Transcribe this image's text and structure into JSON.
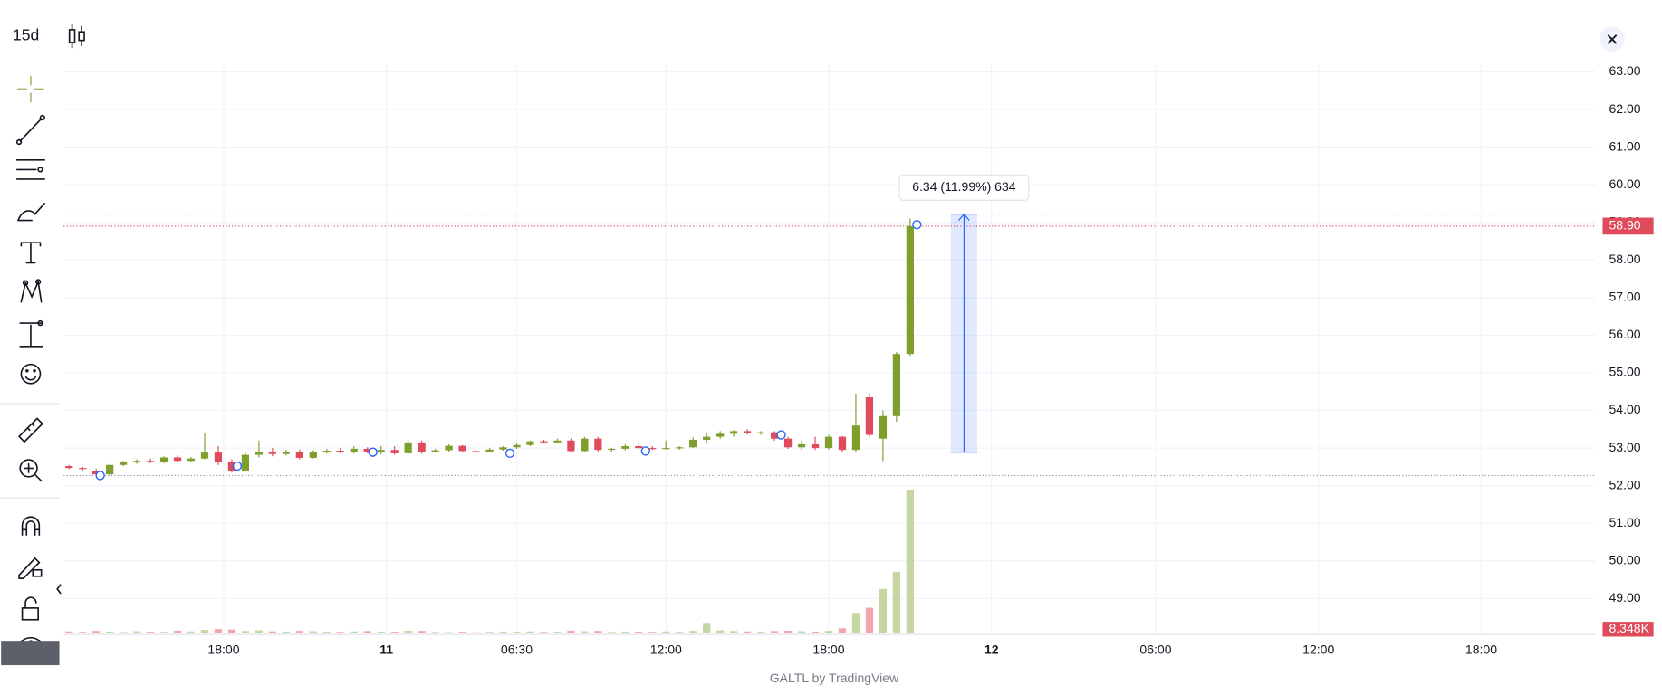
{
  "header": {
    "interval": "15d"
  },
  "footer": {
    "credit": "GALTL by TradingView"
  },
  "chart_data": {
    "type": "candlestick",
    "up_color": "#7f9f2c",
    "down_color": "#e04b5b",
    "volume_up_color": "#c6d6a2",
    "volume_down_color": "#f3a6ae",
    "xlim": [
      -0.4,
      112.5
    ],
    "ylim": [
      48.07,
      63.22
    ],
    "vlim": [
      0,
      8348
    ],
    "grid": true,
    "xticks": [
      {
        "value": 11.4,
        "label": "18:00"
      },
      {
        "value": 23.4,
        "label": "11"
      },
      {
        "value": 33,
        "label": "06:30"
      },
      {
        "value": 44,
        "label": "12:00"
      },
      {
        "value": 56,
        "label": "18:00"
      },
      {
        "value": 68,
        "label": "12"
      },
      {
        "value": 80.1,
        "label": "06:00"
      },
      {
        "value": 92.1,
        "label": "12:00"
      },
      {
        "value": 104.1,
        "label": "18:00"
      }
    ],
    "yticks": [
      {
        "value": 49,
        "label": "49.00"
      },
      {
        "value": 50,
        "label": "50.00"
      },
      {
        "value": 51,
        "label": "51.00"
      },
      {
        "value": 52,
        "label": "52.00"
      },
      {
        "value": 53,
        "label": "53.00"
      },
      {
        "value": 54,
        "label": "54.00"
      },
      {
        "value": 55,
        "label": "55.00"
      },
      {
        "value": 56,
        "label": "56.00"
      },
      {
        "value": 57,
        "label": "57.00"
      },
      {
        "value": 58,
        "label": "58.00"
      },
      {
        "value": 59,
        "label": "59.00"
      },
      {
        "value": 60,
        "label": "60.00"
      },
      {
        "value": 61,
        "label": "61.00"
      },
      {
        "value": 62,
        "label": "62.00"
      },
      {
        "value": 63,
        "label": "63.00"
      }
    ],
    "open": [
      52.52,
      52.47,
      52.4,
      52.3,
      52.55,
      52.62,
      52.66,
      52.63,
      52.75,
      52.66,
      52.72,
      52.88,
      52.62,
      52.4,
      52.82,
      52.9,
      52.84,
      52.9,
      52.74,
      52.9,
      52.93,
      52.9,
      52.98,
      52.89,
      52.95,
      52.86,
      53.15,
      52.9,
      52.94,
      53.06,
      52.92,
      52.9,
      52.96,
      53.02,
      53.08,
      53.18,
      53.15,
      53.2,
      52.92,
      53.25,
      52.95,
      52.98,
      53.05,
      53.0,
      52.98,
      53.0,
      53.02,
      53.22,
      53.3,
      53.38,
      53.45,
      53.4,
      53.42,
      53.25,
      53.02,
      53.1,
      53.0,
      53.3,
      52.95,
      54.35,
      53.25,
      53.85,
      55.5
    ],
    "high": [
      52.55,
      52.5,
      52.45,
      52.58,
      52.66,
      52.7,
      52.72,
      52.78,
      52.8,
      52.76,
      53.4,
      53.05,
      52.7,
      52.9,
      53.2,
      53.0,
      52.95,
      52.96,
      52.94,
      52.98,
      53.0,
      53.05,
      53.02,
      53.05,
      53.05,
      53.2,
      53.2,
      52.98,
      53.1,
      53.08,
      52.96,
      53.0,
      53.05,
      53.12,
      53.2,
      53.22,
      53.25,
      53.25,
      53.3,
      53.3,
      53.0,
      53.1,
      53.12,
      53.05,
      53.2,
      53.05,
      53.28,
      53.4,
      53.45,
      53.48,
      53.5,
      53.45,
      53.45,
      53.3,
      53.2,
      53.3,
      53.35,
      53.32,
      54.45,
      54.45,
      54.0,
      55.55,
      59.1
    ],
    "low": [
      52.44,
      52.4,
      52.27,
      52.28,
      52.52,
      52.58,
      52.6,
      52.6,
      52.62,
      52.64,
      52.7,
      52.55,
      52.35,
      52.38,
      52.75,
      52.78,
      52.8,
      52.7,
      52.72,
      52.85,
      52.86,
      52.85,
      52.86,
      52.84,
      52.82,
      52.84,
      52.85,
      52.88,
      52.9,
      52.88,
      52.88,
      52.88,
      52.93,
      52.98,
      53.05,
      53.12,
      53.12,
      52.88,
      52.9,
      52.9,
      52.9,
      52.94,
      52.96,
      52.95,
      52.96,
      52.96,
      53.0,
      53.15,
      53.25,
      53.3,
      53.36,
      53.35,
      53.2,
      52.98,
      52.96,
      52.95,
      52.96,
      52.9,
      52.9,
      53.3,
      52.65,
      53.7,
      55.45
    ],
    "close": [
      52.47,
      52.45,
      52.3,
      52.55,
      52.62,
      52.66,
      52.63,
      52.75,
      52.66,
      52.72,
      52.88,
      52.62,
      52.4,
      52.82,
      52.9,
      52.84,
      52.9,
      52.74,
      52.9,
      52.93,
      52.9,
      52.98,
      52.89,
      52.95,
      52.86,
      53.15,
      52.9,
      52.94,
      53.06,
      52.92,
      52.9,
      52.96,
      53.02,
      53.08,
      53.18,
      53.15,
      53.2,
      52.92,
      53.25,
      52.95,
      52.98,
      53.05,
      53.0,
      52.98,
      53.0,
      53.02,
      53.22,
      53.3,
      53.38,
      53.45,
      53.4,
      53.42,
      53.25,
      53.02,
      53.1,
      53.0,
      53.3,
      52.95,
      53.6,
      53.35,
      53.85,
      55.5,
      58.9
    ],
    "volume": [
      120,
      90,
      150,
      110,
      80,
      130,
      100,
      90,
      160,
      120,
      210,
      260,
      230,
      140,
      180,
      120,
      110,
      150,
      130,
      100,
      90,
      120,
      140,
      110,
      100,
      160,
      150,
      90,
      80,
      100,
      70,
      90,
      110,
      100,
      120,
      90,
      100,
      160,
      130,
      150,
      90,
      110,
      100,
      90,
      120,
      100,
      150,
      620,
      180,
      140,
      120,
      110,
      140,
      160,
      130,
      110,
      150,
      300,
      1200,
      1500,
      2600,
      3600,
      8348
    ],
    "last_price": {
      "value": 58.9,
      "label": "58.90"
    },
    "last_volume": {
      "value": 8348,
      "label": "8.348K"
    },
    "horizontal_lines": [
      59.22,
      52.27
    ],
    "markers": {
      "x": [
        2.3,
        12.4,
        22.4,
        32.5,
        42.5,
        52.5,
        62.5
      ],
      "y": [
        52.27,
        52.52,
        52.89,
        52.86,
        52.92,
        53.35,
        58.94
      ]
    },
    "measure": {
      "x": [
        65,
        66.95
      ],
      "y": [
        52.89,
        59.22
      ],
      "label": "6.34 (11.99%) 634"
    }
  }
}
